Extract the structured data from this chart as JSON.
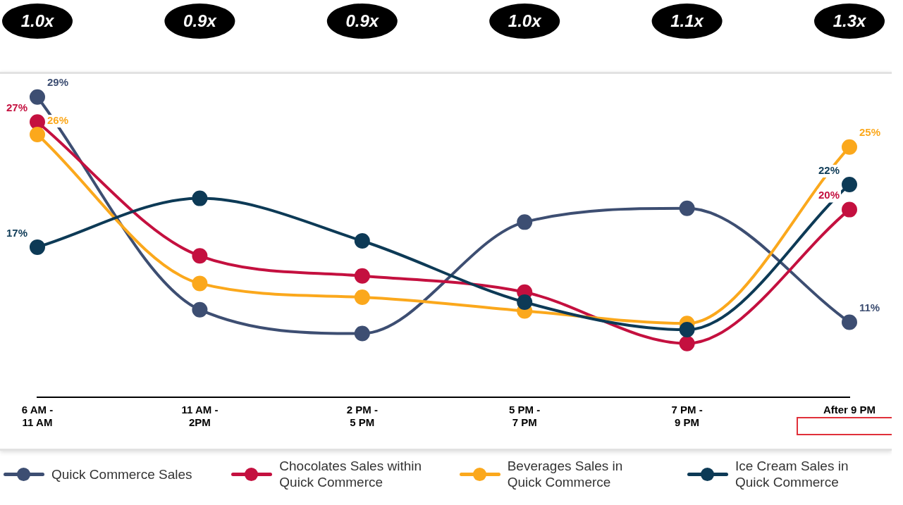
{
  "chart_data": {
    "type": "line",
    "categories": [
      "6 AM - 11 AM",
      "11 AM - 2PM",
      "2 PM - 5 PM",
      "5 PM - 7 PM",
      "7 PM - 9 PM",
      "After 9 PM"
    ],
    "tick_labels": "x",
    "grid": false,
    "legend": "bottom",
    "marker": "circle",
    "line_style": "solid",
    "annotations": [
      "1.0x",
      "0.9x",
      "0.9x",
      "1.0x",
      "1.1x",
      "1.3x"
    ],
    "series": [
      {
        "name": "Quick Commerce Sales",
        "color": "#3d4e72",
        "values": [
          29,
          12.0,
          10.1,
          19.0,
          20.1,
          11
        ],
        "value_labels": [
          "29%",
          null,
          null,
          null,
          null,
          "11%"
        ]
      },
      {
        "name": "Chocolates Sales within Quick Commerce",
        "color": "#c4103f",
        "values": [
          27,
          16.3,
          14.7,
          13.4,
          9.3,
          20
        ],
        "value_labels": [
          "27%",
          null,
          null,
          null,
          null,
          "20%"
        ]
      },
      {
        "name": "Beverages Sales in Quick Commerce",
        "color": "#fba81c",
        "values": [
          26,
          14.1,
          13.0,
          11.9,
          10.9,
          25
        ],
        "value_labels": [
          "26%",
          null,
          null,
          null,
          null,
          "25%"
        ]
      },
      {
        "name": "Ice Cream Sales in Quick Commerce",
        "color": "#0d3a56",
        "values": [
          17,
          20.9,
          17.5,
          12.6,
          10.4,
          22
        ],
        "value_labels": [
          "17%",
          null,
          null,
          null,
          null,
          "22%"
        ]
      }
    ]
  }
}
